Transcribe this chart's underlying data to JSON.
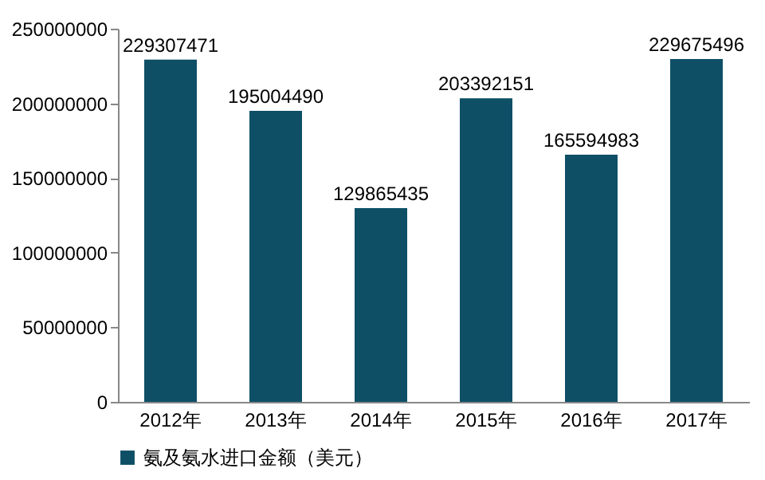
{
  "chart_data": {
    "type": "bar",
    "categories": [
      "2012年",
      "2013年",
      "2014年",
      "2015年",
      "2016年",
      "2017年"
    ],
    "series": [
      {
        "name": "氨及氨水进口金额（美元）",
        "color": "#0e4f66",
        "values": [
          229307471,
          195004490,
          129865435,
          203392151,
          165594983,
          229675496
        ]
      }
    ],
    "ylim": [
      0,
      250000000
    ],
    "yticks": [
      0,
      50000000,
      100000000,
      150000000,
      200000000,
      250000000
    ],
    "grid": false,
    "legend": "bottom",
    "data_labels": true
  }
}
